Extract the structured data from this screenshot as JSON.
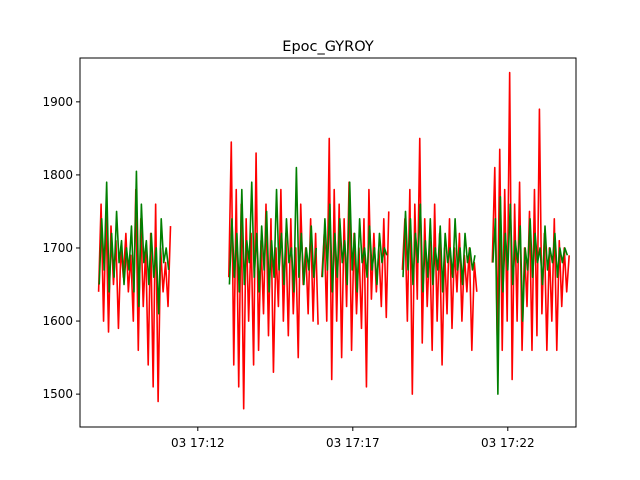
{
  "chart_data": {
    "type": "line",
    "title": "Epoc_GYROY",
    "xlabel": "",
    "ylabel": "",
    "x_axis_kind": "time",
    "x_ticks": [
      {
        "label": "03 17:12",
        "minute": 12
      },
      {
        "label": "03 17:17",
        "minute": 17
      },
      {
        "label": "03 17:22",
        "minute": 22
      }
    ],
    "xlim": [
      8.2,
      23.0
    ],
    "ylim": [
      1455,
      1960
    ],
    "y_ticks": [
      1500,
      1600,
      1700,
      1800,
      1900
    ],
    "grid": false,
    "legend": "none",
    "colors": {
      "series_1": "#ff0000",
      "series_2": "#007f00"
    },
    "series": [
      {
        "color": "#ff0000",
        "segments": [
          {
            "x": [
              8.8,
              8.88,
              8.96,
              9.04,
              9.12,
              9.2,
              9.28,
              9.36,
              9.44,
              9.52,
              9.6,
              9.68,
              9.76,
              9.84,
              9.92,
              10.0,
              10.08,
              10.16,
              10.24,
              10.32,
              10.4,
              10.48,
              10.56,
              10.64,
              10.72,
              10.8,
              10.88,
              10.96,
              11.04,
              11.12
            ],
            "y": [
              1640,
              1760,
              1600,
              1750,
              1585,
              1730,
              1650,
              1710,
              1590,
              1700,
              1660,
              1720,
              1640,
              1690,
              1600,
              1780,
              1560,
              1740,
              1620,
              1700,
              1540,
              1720,
              1510,
              1760,
              1490,
              1700,
              1640,
              1680,
              1620,
              1730
            ]
          },
          {
            "x": [
              13.0,
              13.08,
              13.16,
              13.24,
              13.32,
              13.4,
              13.48,
              13.56,
              13.64,
              13.72,
              13.8,
              13.88,
              13.96,
              14.04,
              14.12,
              14.2,
              14.28,
              14.36,
              14.44,
              14.52,
              14.6,
              14.68,
              14.76,
              14.84,
              14.92,
              15.0,
              15.08,
              15.16,
              15.24,
              15.32,
              15.4,
              15.48,
              15.56,
              15.64,
              15.72,
              15.8,
              15.88
            ],
            "y": [
              1660,
              1845,
              1540,
              1780,
              1510,
              1760,
              1480,
              1740,
              1600,
              1720,
              1540,
              1830,
              1560,
              1710,
              1610,
              1760,
              1580,
              1740,
              1530,
              1700,
              1620,
              1780,
              1600,
              1720,
              1580,
              1740,
              1610,
              1700,
              1550,
              1760,
              1650,
              1700,
              1610,
              1740,
              1600,
              1720,
              1595
            ]
          },
          {
            "x": [
              16.0,
              16.08,
              16.16,
              16.24,
              16.32,
              16.4,
              16.48,
              16.56,
              16.64,
              16.72,
              16.8,
              16.88,
              16.96,
              17.04,
              17.12,
              17.2,
              17.28,
              17.36,
              17.44,
              17.52,
              17.6,
              17.68,
              17.76,
              17.84,
              17.92,
              18.0,
              18.08,
              18.16
            ],
            "y": [
              1660,
              1720,
              1600,
              1850,
              1520,
              1780,
              1600,
              1760,
              1550,
              1740,
              1620,
              1790,
              1560,
              1720,
              1610,
              1700,
              1590,
              1740,
              1510,
              1780,
              1630,
              1720,
              1640,
              1700,
              1620,
              1740,
              1605,
              1750
            ]
          },
          {
            "x": [
              18.6,
              18.68,
              18.76,
              18.84,
              18.92,
              19.0,
              19.08,
              19.16,
              19.24,
              19.32,
              19.4,
              19.48,
              19.56,
              19.64,
              19.72,
              19.8,
              19.88,
              19.96,
              20.04,
              20.12,
              20.2,
              20.28,
              20.36,
              20.44,
              20.52,
              20.6,
              20.68,
              20.76,
              20.84,
              20.92,
              21.0
            ],
            "y": [
              1670,
              1740,
              1600,
              1780,
              1500,
              1760,
              1630,
              1850,
              1570,
              1740,
              1620,
              1710,
              1560,
              1760,
              1600,
              1720,
              1540,
              1700,
              1610,
              1740,
              1590,
              1700,
              1640,
              1720,
              1600,
              1690,
              1640,
              1700,
              1560,
              1680,
              1640
            ]
          },
          {
            "x": [
              21.5,
              21.58,
              21.66,
              21.74,
              21.82,
              21.9,
              21.98,
              22.06,
              22.14,
              22.22,
              22.3,
              22.38,
              22.46,
              22.54,
              22.62,
              22.7,
              22.78,
              22.86,
              22.94,
              23.02,
              23.1,
              23.18,
              23.26,
              23.34,
              23.42,
              23.5,
              23.58,
              23.66,
              23.74,
              23.82,
              23.9,
              23.98
            ],
            "y": [
              1680,
              1810,
              1580,
              1835,
              1560,
              1780,
              1600,
              1940,
              1520,
              1760,
              1600,
              1790,
              1560,
              1700,
              1620,
              1750,
              1560,
              1780,
              1580,
              1890,
              1610,
              1720,
              1560,
              1700,
              1600,
              1740,
              1560,
              1710,
              1620,
              1700,
              1640,
              1690
            ]
          }
        ]
      },
      {
        "color": "#007f00",
        "segments": [
          {
            "x": [
              8.82,
              8.9,
              8.98,
              9.06,
              9.14,
              9.22,
              9.3,
              9.38,
              9.46,
              9.54,
              9.62,
              9.7,
              9.78,
              9.86,
              9.94,
              10.02,
              10.1,
              10.18,
              10.26,
              10.34,
              10.42,
              10.5,
              10.58,
              10.66,
              10.74,
              10.82,
              10.9,
              10.98,
              11.06
            ],
            "y": [
              1650,
              1740,
              1670,
              1790,
              1640,
              1720,
              1660,
              1750,
              1680,
              1710,
              1650,
              1700,
              1670,
              1730,
              1640,
              1805,
              1620,
              1760,
              1680,
              1710,
              1650,
              1720,
              1660,
              1700,
              1610,
              1740,
              1680,
              1700,
              1670
            ]
          },
          {
            "x": [
              13.02,
              13.1,
              13.18,
              13.26,
              13.34,
              13.42,
              13.5,
              13.58,
              13.66,
              13.74,
              13.82,
              13.9,
              13.98,
              14.06,
              14.14,
              14.22,
              14.3,
              14.38,
              14.46,
              14.54,
              14.62,
              14.7,
              14.78,
              14.86,
              14.94,
              15.02,
              15.1,
              15.18,
              15.26,
              15.34,
              15.42,
              15.5,
              15.58,
              15.66,
              15.74,
              15.82
            ],
            "y": [
              1650,
              1740,
              1660,
              1720,
              1640,
              1780,
              1650,
              1710,
              1680,
              1790,
              1660,
              1720,
              1640,
              1730,
              1670,
              1750,
              1640,
              1710,
              1660,
              1780,
              1670,
              1720,
              1650,
              1740,
              1680,
              1700,
              1640,
              1810,
              1660,
              1720,
              1650,
              1700,
              1670,
              1730,
              1660,
              1700
            ]
          },
          {
            "x": [
              16.02,
              16.1,
              16.18,
              16.26,
              16.34,
              16.42,
              16.5,
              16.58,
              16.66,
              16.74,
              16.82,
              16.9,
              16.98,
              17.06,
              17.14,
              17.22,
              17.3,
              17.38,
              17.46,
              17.54,
              17.62,
              17.7,
              17.78,
              17.86,
              17.94,
              18.02,
              18.1
            ],
            "y": [
              1660,
              1740,
              1670,
              1760,
              1640,
              1720,
              1660,
              1740,
              1680,
              1710,
              1650,
              1790,
              1670,
              1720,
              1640,
              1740,
              1680,
              1700,
              1660,
              1730,
              1670,
              1700,
              1650,
              1720,
              1680,
              1700,
              1690
            ]
          },
          {
            "x": [
              18.62,
              18.7,
              18.78,
              18.86,
              18.94,
              19.02,
              19.1,
              19.18,
              19.26,
              19.34,
              19.42,
              19.5,
              19.58,
              19.66,
              19.74,
              19.82,
              19.9,
              19.98,
              20.06,
              20.14,
              20.22,
              20.3,
              20.38,
              20.46,
              20.54,
              20.62,
              20.7,
              20.78,
              20.86,
              20.94
            ],
            "y": [
              1660,
              1750,
              1670,
              1740,
              1650,
              1720,
              1680,
              1760,
              1640,
              1710,
              1660,
              1740,
              1650,
              1700,
              1670,
              1730,
              1640,
              1720,
              1680,
              1700,
              1660,
              1740,
              1670,
              1700,
              1650,
              1720,
              1680,
              1700,
              1670,
              1690
            ]
          },
          {
            "x": [
              21.52,
              21.6,
              21.68,
              21.76,
              21.84,
              21.92,
              22.0,
              22.08,
              22.16,
              22.24,
              22.32,
              22.4,
              22.48,
              22.56,
              22.64,
              22.72,
              22.8,
              22.88,
              22.96,
              23.04,
              23.12,
              23.2,
              23.28,
              23.36,
              23.44,
              23.52,
              23.6,
              23.68,
              23.76,
              23.84,
              23.92
            ],
            "y": [
              1680,
              1740,
              1500,
              1770,
              1640,
              1720,
              1670,
              1760,
              1650,
              1710,
              1680,
              1730,
              1600,
              1700,
              1670,
              1740,
              1660,
              1720,
              1680,
              1700,
              1650,
              1730,
              1670,
              1700,
              1680,
              1720,
              1660,
              1700,
              1680,
              1700,
              1690
            ]
          }
        ]
      }
    ]
  }
}
